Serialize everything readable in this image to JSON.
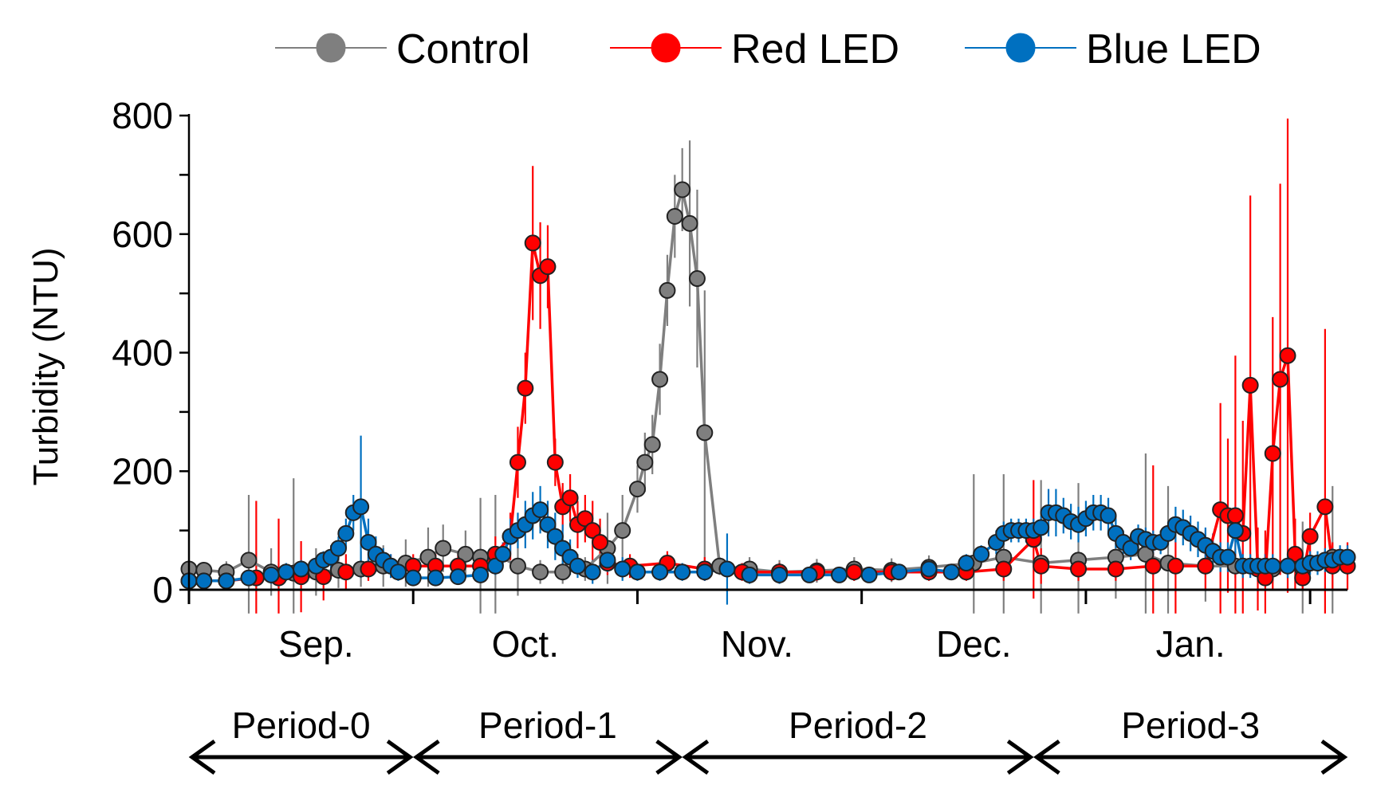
{
  "chart_data": {
    "type": "line",
    "title": "",
    "xlabel": "",
    "ylabel": "Turbidity (NTU)",
    "ylim": [
      0,
      800
    ],
    "yticks": [
      0,
      200,
      400,
      600,
      800
    ],
    "y_minor_step": 100,
    "day_range": [
      1,
      156
    ],
    "month_boundaries": [
      1,
      31,
      61,
      91,
      121,
      151
    ],
    "months": [
      {
        "label": "Sep.",
        "center_day": 18
      },
      {
        "label": "Oct.",
        "center_day": 46
      },
      {
        "label": "Nov.",
        "center_day": 77
      },
      {
        "label": "Dec.",
        "center_day": 106
      },
      {
        "label": "Jan.",
        "center_day": 135
      }
    ],
    "periods": [
      {
        "label": "Period-0",
        "start_day": 1,
        "end_day": 31
      },
      {
        "label": "Period-1",
        "start_day": 31,
        "end_day": 67
      },
      {
        "label": "Period-2",
        "start_day": 67,
        "end_day": 114
      },
      {
        "label": "Period-3",
        "start_day": 114,
        "end_day": 156
      }
    ],
    "legend_position": "top",
    "series": [
      {
        "name": "Control",
        "color": "#7f7f7f",
        "points": [
          [
            1,
            35,
            15
          ],
          [
            3,
            33,
            12
          ],
          [
            6,
            30,
            18
          ],
          [
            9,
            50,
            110
          ],
          [
            12,
            30,
            40
          ],
          [
            15,
            28,
            160
          ],
          [
            18,
            30,
            40
          ],
          [
            21,
            33,
            30
          ],
          [
            24,
            35,
            30
          ],
          [
            27,
            40,
            35
          ],
          [
            30,
            45,
            40
          ],
          [
            33,
            55,
            50
          ],
          [
            35,
            70,
            40
          ],
          [
            38,
            60,
            40
          ],
          [
            40,
            55,
            100
          ],
          [
            42,
            60,
            100
          ],
          [
            45,
            40,
            50
          ],
          [
            48,
            30,
            20
          ],
          [
            51,
            30,
            20
          ],
          [
            54,
            35,
            20
          ],
          [
            57,
            70,
            60
          ],
          [
            59,
            100,
            60
          ],
          [
            61,
            170,
            40
          ],
          [
            62,
            215,
            50
          ],
          [
            63,
            245,
            50
          ],
          [
            64,
            355,
            60
          ],
          [
            65,
            505,
            60
          ],
          [
            66,
            630,
            70
          ],
          [
            67,
            675,
            70
          ],
          [
            68,
            618,
            140
          ],
          [
            69,
            525,
            150
          ],
          [
            70,
            265,
            240
          ],
          [
            72,
            40,
            15
          ],
          [
            76,
            35,
            20
          ],
          [
            80,
            30,
            20
          ],
          [
            85,
            32,
            20
          ],
          [
            90,
            35,
            20
          ],
          [
            95,
            33,
            20
          ],
          [
            100,
            38,
            20
          ],
          [
            106,
            45,
            150
          ],
          [
            110,
            55,
            140
          ],
          [
            115,
            45,
            140
          ],
          [
            120,
            50,
            130
          ],
          [
            125,
            55,
            70
          ],
          [
            129,
            60,
            170
          ],
          [
            132,
            45,
            130
          ],
          [
            137,
            40,
            60
          ],
          [
            141,
            40,
            20
          ],
          [
            146,
            35,
            20
          ],
          [
            150,
            35,
            80
          ],
          [
            154,
            55,
            120
          ]
        ]
      },
      {
        "name": "Red LED",
        "color": "#ff0000",
        "points": [
          [
            1,
            15,
            10
          ],
          [
            6,
            15,
            10
          ],
          [
            10,
            20,
            130
          ],
          [
            13,
            20,
            100
          ],
          [
            16,
            22,
            60
          ],
          [
            19,
            22,
            40
          ],
          [
            22,
            30,
            30
          ],
          [
            25,
            35,
            20
          ],
          [
            28,
            40,
            20
          ],
          [
            31,
            40,
            20
          ],
          [
            34,
            40,
            20
          ],
          [
            37,
            40,
            20
          ],
          [
            40,
            40,
            20
          ],
          [
            42,
            60,
            30
          ],
          [
            44,
            90,
            40
          ],
          [
            45,
            215,
            60
          ],
          [
            46,
            340,
            60
          ],
          [
            47,
            585,
            130
          ],
          [
            48,
            530,
            90
          ],
          [
            49,
            545,
            70
          ],
          [
            50,
            215,
            40
          ],
          [
            51,
            140,
            40
          ],
          [
            52,
            155,
            40
          ],
          [
            53,
            110,
            40
          ],
          [
            54,
            120,
            40
          ],
          [
            55,
            100,
            50
          ],
          [
            56,
            80,
            40
          ],
          [
            57,
            45,
            20
          ],
          [
            60,
            40,
            20
          ],
          [
            65,
            45,
            20
          ],
          [
            70,
            35,
            20
          ],
          [
            75,
            30,
            15
          ],
          [
            80,
            30,
            15
          ],
          [
            85,
            30,
            15
          ],
          [
            90,
            30,
            15
          ],
          [
            95,
            30,
            15
          ],
          [
            100,
            30,
            15
          ],
          [
            105,
            30,
            15
          ],
          [
            110,
            35,
            20
          ],
          [
            114,
            85,
            100
          ],
          [
            115,
            40,
            30
          ],
          [
            120,
            35,
            20
          ],
          [
            125,
            35,
            20
          ],
          [
            130,
            40,
            170
          ],
          [
            133,
            40,
            80
          ],
          [
            137,
            40,
            40
          ],
          [
            139,
            135,
            180
          ],
          [
            140,
            125,
            130
          ],
          [
            141,
            125,
            270
          ],
          [
            142,
            95,
            190
          ],
          [
            143,
            345,
            320
          ],
          [
            144,
            35,
            70
          ],
          [
            145,
            20,
            80
          ],
          [
            146,
            230,
            230
          ],
          [
            147,
            355,
            330
          ],
          [
            148,
            395,
            400
          ],
          [
            149,
            60,
            60
          ],
          [
            150,
            20,
            20
          ],
          [
            151,
            90,
            40
          ],
          [
            153,
            140,
            300
          ],
          [
            154,
            40,
            40
          ],
          [
            156,
            40,
            40
          ]
        ]
      },
      {
        "name": "Blue LED",
        "color": "#0070c0",
        "points": [
          [
            1,
            15,
            10
          ],
          [
            3,
            15,
            8
          ],
          [
            6,
            15,
            8
          ],
          [
            9,
            20,
            10
          ],
          [
            12,
            25,
            15
          ],
          [
            14,
            30,
            15
          ],
          [
            16,
            35,
            15
          ],
          [
            18,
            40,
            15
          ],
          [
            19,
            50,
            15
          ],
          [
            20,
            55,
            20
          ],
          [
            21,
            70,
            20
          ],
          [
            22,
            95,
            25
          ],
          [
            23,
            130,
            30
          ],
          [
            24,
            140,
            120
          ],
          [
            25,
            80,
            40
          ],
          [
            26,
            60,
            30
          ],
          [
            27,
            50,
            20
          ],
          [
            28,
            40,
            20
          ],
          [
            29,
            30,
            15
          ],
          [
            31,
            20,
            10
          ],
          [
            34,
            20,
            10
          ],
          [
            37,
            22,
            10
          ],
          [
            40,
            25,
            10
          ],
          [
            42,
            40,
            15
          ],
          [
            43,
            60,
            20
          ],
          [
            44,
            90,
            30
          ],
          [
            45,
            100,
            30
          ],
          [
            46,
            110,
            40
          ],
          [
            47,
            125,
            40
          ],
          [
            48,
            135,
            40
          ],
          [
            49,
            110,
            40
          ],
          [
            50,
            90,
            40
          ],
          [
            51,
            70,
            40
          ],
          [
            52,
            55,
            30
          ],
          [
            53,
            40,
            20
          ],
          [
            55,
            30,
            20
          ],
          [
            57,
            50,
            20
          ],
          [
            59,
            35,
            20
          ],
          [
            61,
            30,
            15
          ],
          [
            64,
            30,
            15
          ],
          [
            67,
            30,
            15
          ],
          [
            70,
            30,
            15
          ],
          [
            73,
            35,
            60
          ],
          [
            76,
            25,
            15
          ],
          [
            80,
            25,
            15
          ],
          [
            84,
            25,
            10
          ],
          [
            88,
            25,
            10
          ],
          [
            92,
            25,
            10
          ],
          [
            96,
            30,
            10
          ],
          [
            100,
            35,
            10
          ],
          [
            103,
            30,
            10
          ],
          [
            105,
            45,
            15
          ],
          [
            107,
            60,
            15
          ],
          [
            109,
            80,
            20
          ],
          [
            110,
            95,
            20
          ],
          [
            111,
            100,
            20
          ],
          [
            112,
            100,
            20
          ],
          [
            113,
            100,
            20
          ],
          [
            114,
            100,
            20
          ],
          [
            115,
            105,
            20
          ],
          [
            116,
            130,
            40
          ],
          [
            117,
            130,
            40
          ],
          [
            118,
            125,
            30
          ],
          [
            119,
            115,
            30
          ],
          [
            120,
            110,
            30
          ],
          [
            121,
            120,
            30
          ],
          [
            122,
            130,
            30
          ],
          [
            123,
            130,
            30
          ],
          [
            124,
            125,
            30
          ],
          [
            125,
            95,
            25
          ],
          [
            126,
            80,
            20
          ],
          [
            127,
            70,
            20
          ],
          [
            128,
            90,
            20
          ],
          [
            129,
            85,
            20
          ],
          [
            130,
            80,
            20
          ],
          [
            131,
            80,
            20
          ],
          [
            132,
            95,
            20
          ],
          [
            133,
            110,
            30
          ],
          [
            134,
            105,
            30
          ],
          [
            135,
            95,
            30
          ],
          [
            136,
            85,
            30
          ],
          [
            137,
            75,
            30
          ],
          [
            138,
            65,
            30
          ],
          [
            139,
            55,
            25
          ],
          [
            140,
            55,
            25
          ],
          [
            141,
            100,
            40
          ],
          [
            142,
            40,
            20
          ],
          [
            143,
            40,
            20
          ],
          [
            144,
            40,
            20
          ],
          [
            145,
            40,
            20
          ],
          [
            146,
            40,
            20
          ],
          [
            148,
            40,
            20
          ],
          [
            150,
            40,
            20
          ],
          [
            151,
            45,
            20
          ],
          [
            152,
            45,
            20
          ],
          [
            153,
            50,
            20
          ],
          [
            154,
            50,
            20
          ],
          [
            155,
            55,
            20
          ],
          [
            156,
            55,
            20
          ]
        ]
      }
    ]
  }
}
